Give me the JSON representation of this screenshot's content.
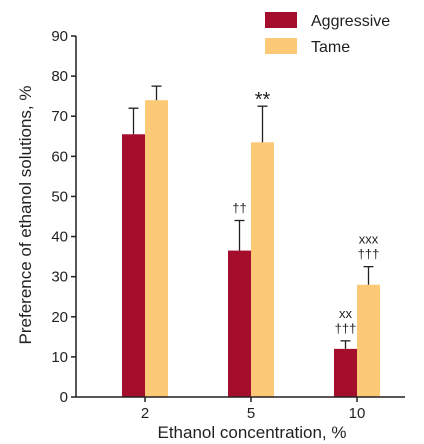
{
  "chart_data": {
    "type": "bar",
    "xlabel": "Ethanol concentration, %",
    "ylabel": "Preference of ethanol solutions, %",
    "categories": [
      "2",
      "5",
      "10"
    ],
    "ylim": [
      0,
      90
    ],
    "yticks": [
      0,
      10,
      20,
      30,
      40,
      50,
      60,
      70,
      80,
      90
    ],
    "grid": false,
    "legend_position": "top-right",
    "series": [
      {
        "name": "Aggressive",
        "color": "#a50d2c",
        "values": [
          65.5,
          36.5,
          12
        ],
        "errors": [
          6.5,
          7.5,
          2
        ],
        "annotations": [
          "",
          "††",
          "xx\n†††"
        ]
      },
      {
        "name": "Tame",
        "color": "#fcc977",
        "values": [
          74,
          63.5,
          28
        ],
        "errors": [
          3.5,
          9,
          4.5
        ],
        "annotations": [
          "",
          "**",
          "xxx\n†††"
        ]
      }
    ]
  }
}
